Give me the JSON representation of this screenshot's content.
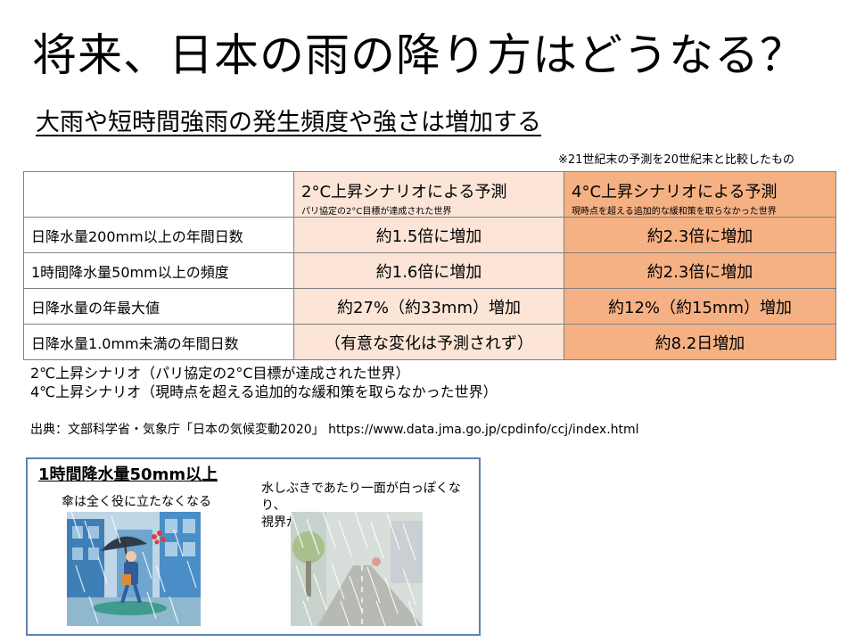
{
  "title": "将来、日本の雨の降り方はどうなる？",
  "subtitle": "大雨や短時間強雨の発生頻度や強さは増加する",
  "note": "※21世紀末の予測を20世紀末と比較したもの",
  "table": {
    "headers": [
      {
        "main": "2°C上昇シナリオによる予測",
        "sub": "パリ協定の2°C目標が達成された世界"
      },
      {
        "main": "4°C上昇シナリオによる予測",
        "sub": "現時点を超える追加的な緩和策を取らなかった世界"
      }
    ],
    "rows": [
      {
        "label": "日降水量200mm以上の年間日数",
        "s2": "約1.5倍に増加",
        "s4": "約2.3倍に増加"
      },
      {
        "label": "1時間降水量50mm以上の頻度",
        "s2": "約1.6倍に増加",
        "s4": "約2.3倍に増加"
      },
      {
        "label": "日降水量の年最大値",
        "s2": "約27%（約33mm）増加",
        "s4": "約12%（約15mm）増加"
      },
      {
        "label": "日降水量1.0mm未満の年間日数",
        "s2": "（有意な変化は予測されず）",
        "s4": "約8.2日増加"
      }
    ]
  },
  "legend": [
    "2℃上昇シナリオ（パリ協定の2°C目標が達成された世界）",
    "4℃上昇シナリオ（現時点を超える追加的な緩和策を取らなかった世界）"
  ],
  "source": "出典：文部科学省・気象庁「日本の気候変動2020」 https://www.data.jma.go.jp/cpdinfo/ccj/index.html",
  "panel": {
    "title": "1時間降水量50mm以上",
    "caption_left": "傘は全く役に立たなくなる",
    "caption_right_line1": "水しぶきであたり一面が白っぽくなり、",
    "caption_right_line2": "視界が悪くなる"
  }
}
